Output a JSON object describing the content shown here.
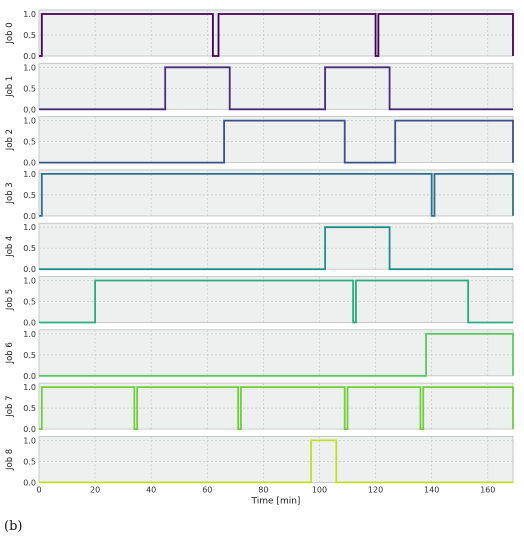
{
  "caption": "(b)",
  "chart_data": {
    "type": "line",
    "style": "step",
    "xlabel": "Time [min]",
    "xlim": [
      0,
      169
    ],
    "ylim": [
      0,
      1
    ],
    "xticks": [
      "0",
      "20",
      "40",
      "60",
      "80",
      "100",
      "120",
      "140",
      "160"
    ],
    "yticks": [
      "0.0",
      "0.5",
      "1.0"
    ],
    "grid": true,
    "panels": [
      {
        "label": "Job 0",
        "color": "#440154",
        "intervals": [
          [
            1,
            62
          ],
          [
            64,
            120
          ],
          [
            121,
            169
          ]
        ]
      },
      {
        "label": "Job 1",
        "color": "#472d7b",
        "intervals": [
          [
            45,
            68
          ],
          [
            102,
            125
          ]
        ]
      },
      {
        "label": "Job 2",
        "color": "#3b518b",
        "intervals": [
          [
            66,
            109
          ],
          [
            127,
            169
          ]
        ]
      },
      {
        "label": "Job 3",
        "color": "#2c718e",
        "intervals": [
          [
            1,
            140
          ],
          [
            141,
            169
          ]
        ]
      },
      {
        "label": "Job 4",
        "color": "#21908d",
        "intervals": [
          [
            102,
            125
          ]
        ]
      },
      {
        "label": "Job 5",
        "color": "#27ad81",
        "intervals": [
          [
            20,
            112
          ],
          [
            113,
            153
          ]
        ]
      },
      {
        "label": "Job 6",
        "color": "#5cc863",
        "intervals": [
          [
            138,
            169
          ]
        ]
      },
      {
        "label": "Job 7",
        "color": "#6fcf3a",
        "intervals": [
          [
            1,
            34
          ],
          [
            35,
            71
          ],
          [
            72,
            109
          ],
          [
            110,
            136
          ],
          [
            137,
            169
          ]
        ]
      },
      {
        "label": "Job 8",
        "color": "#c2df23",
        "intervals": [
          [
            97,
            106
          ]
        ]
      }
    ]
  }
}
